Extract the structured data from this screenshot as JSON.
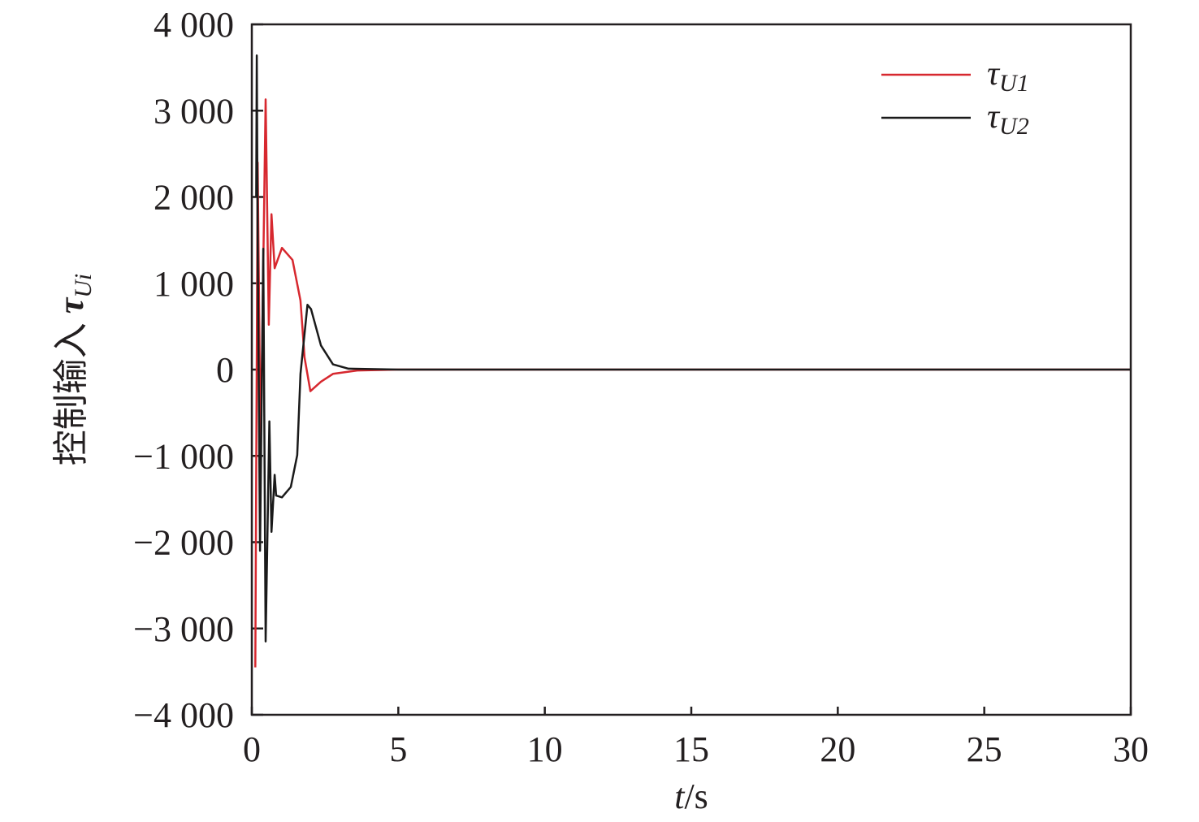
{
  "chart_data": {
    "type": "line",
    "xlabel": {
      "italic": "t",
      "rest": "/s"
    },
    "ylabel": {
      "text": "控制输入 ",
      "symbol": "τ",
      "subscript": "Ui"
    },
    "xlim": [
      0,
      30
    ],
    "ylim": [
      -4000,
      4000
    ],
    "xticks": [
      0,
      5,
      10,
      15,
      20,
      25,
      30
    ],
    "xtick_labels": [
      "0",
      "5",
      "10",
      "15",
      "20",
      "25",
      "30"
    ],
    "yticks": [
      4000,
      3000,
      2000,
      1000,
      0,
      -1000,
      -2000,
      -3000,
      -4000
    ],
    "ytick_labels": [
      "4 000",
      "3 000",
      "2 000",
      "1 000",
      "0",
      "−1 000",
      "−2 000",
      "−3 000",
      "−4 000"
    ],
    "grid": false,
    "legend_position": "top-right",
    "series": [
      {
        "name": "τ_U1",
        "symbol": "τ",
        "subscript": "U1",
        "color": "#d7282f",
        "x": [
          0.12,
          0.2,
          0.3,
          0.47,
          0.58,
          0.67,
          0.78,
          1.03,
          1.39,
          1.66,
          1.8,
          2.0,
          2.36,
          2.77,
          3.6,
          5,
          30
        ],
        "y": [
          -3450,
          2400,
          -1000,
          3130,
          520,
          1800,
          1175,
          1410,
          1270,
          800,
          140,
          -250,
          -140,
          -50,
          -10,
          0,
          0
        ]
      },
      {
        "name": "τ_U2",
        "symbol": "τ",
        "subscript": "U2",
        "color": "#1a1a1a",
        "x": [
          0.15,
          0.17,
          0.2,
          0.28,
          0.39,
          0.47,
          0.6,
          0.67,
          0.78,
          0.83,
          1.03,
          1.33,
          1.55,
          1.66,
          1.9,
          2.02,
          2.36,
          2.77,
          3.3,
          5,
          30
        ],
        "y": [
          2000,
          3640,
          1460,
          -2100,
          1400,
          -3150,
          -600,
          -1880,
          -1220,
          -1460,
          -1480,
          -1360,
          -990,
          -50,
          750,
          700,
          280,
          60,
          10,
          0,
          0
        ]
      }
    ]
  }
}
